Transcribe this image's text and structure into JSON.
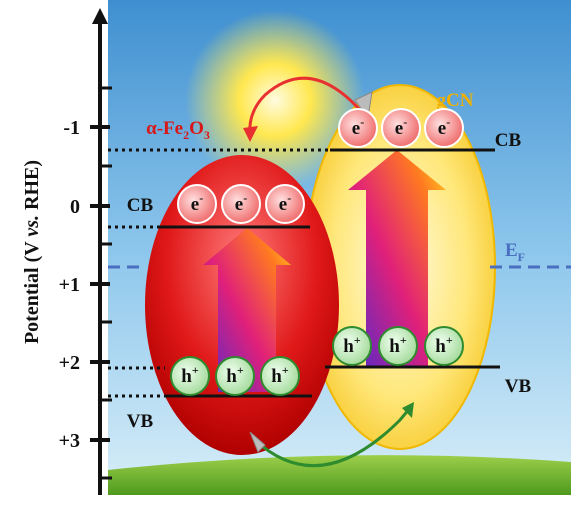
{
  "axis": {
    "label": [
      "Potential (V ",
      "vs.",
      " RHE)"
    ],
    "ticks": [
      "-1",
      "0",
      "+1",
      "+2",
      "+3"
    ]
  },
  "fe2o3": {
    "label": [
      "α-Fe",
      "2",
      "O",
      "3"
    ],
    "cb": "CB",
    "vb": "VB",
    "electrons": [
      [
        "e",
        "-"
      ],
      [
        "e",
        "-"
      ],
      [
        "e",
        "-"
      ]
    ],
    "holes": [
      [
        "h",
        "+"
      ],
      [
        "h",
        "+"
      ],
      [
        "h",
        "+"
      ]
    ]
  },
  "gcn": {
    "label": "gCN",
    "cb": "CB",
    "vb": "VB",
    "electrons": [
      [
        "e",
        "-"
      ],
      [
        "e",
        "-"
      ],
      [
        "e",
        "-"
      ]
    ],
    "holes": [
      [
        "h",
        "+"
      ],
      [
        "h",
        "+"
      ],
      [
        "h",
        "+"
      ]
    ]
  },
  "fermi": [
    "E",
    "F"
  ]
}
